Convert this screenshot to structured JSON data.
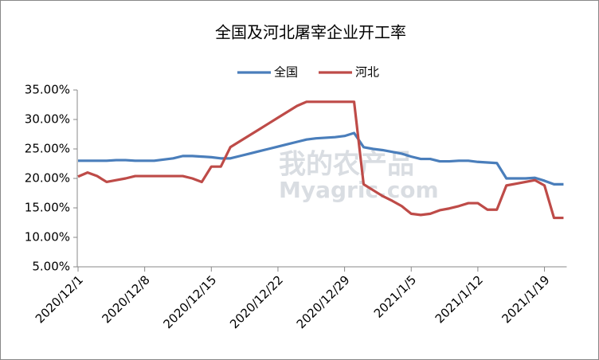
{
  "chart_data": {
    "type": "line",
    "title": "全国及河北屠宰企业开工率",
    "watermark": [
      "我的农产品",
      "Myagric.com"
    ],
    "categories": [
      "2020/12/1",
      null,
      null,
      null,
      null,
      null,
      null,
      "2020/12/8",
      null,
      null,
      null,
      null,
      null,
      null,
      "2020/12/15",
      null,
      null,
      null,
      null,
      null,
      null,
      "2020/12/22",
      null,
      null,
      null,
      null,
      null,
      null,
      "2020/12/29",
      null,
      null,
      null,
      null,
      null,
      null,
      "2021/1/5",
      null,
      null,
      null,
      null,
      null,
      null,
      "2021/1/12",
      null,
      null,
      null,
      null,
      null,
      null,
      "2021/1/19",
      null,
      null
    ],
    "series": [
      {
        "name": "全国",
        "color": "#4a7ebb",
        "values": [
          23.0,
          23.0,
          23.0,
          23.0,
          23.1,
          23.1,
          23.0,
          23.0,
          23.0,
          23.2,
          23.4,
          23.8,
          23.8,
          23.7,
          23.6,
          23.4,
          23.4,
          23.8,
          24.2,
          24.6,
          25.0,
          25.4,
          25.8,
          26.2,
          26.6,
          26.8,
          26.9,
          27.0,
          27.2,
          27.7,
          25.3,
          25.0,
          24.8,
          24.5,
          24.2,
          23.7,
          23.3,
          23.3,
          22.9,
          22.9,
          23.0,
          23.0,
          22.8,
          22.7,
          22.6,
          20.0,
          20.0,
          20.0,
          20.1,
          19.6,
          19.0,
          19.0
        ]
      },
      {
        "name": "河北",
        "color": "#be4b48",
        "values": [
          20.3,
          21.0,
          20.4,
          19.4,
          19.7,
          20.0,
          20.4,
          20.4,
          20.4,
          20.4,
          20.4,
          20.4,
          20.0,
          19.4,
          22.0,
          22.0,
          25.3,
          26.3,
          27.3,
          28.3,
          29.3,
          30.3,
          31.3,
          32.3,
          33.0,
          33.0,
          33.0,
          33.0,
          33.0,
          33.0,
          19.0,
          18.0,
          17.0,
          16.2,
          15.3,
          14.0,
          13.8,
          14.0,
          14.6,
          14.9,
          15.3,
          15.8,
          15.8,
          14.7,
          14.7,
          18.8,
          19.1,
          19.4,
          19.7,
          18.8,
          13.3,
          13.3
        ]
      }
    ],
    "ylim": [
      5,
      35
    ],
    "yticks": [
      {
        "value": 5,
        "label": "5.00%"
      },
      {
        "value": 10,
        "label": "10.00%"
      },
      {
        "value": 15,
        "label": "15.00%"
      },
      {
        "value": 20,
        "label": "20.00%"
      },
      {
        "value": 25,
        "label": "25.00%"
      },
      {
        "value": 30,
        "label": "30.00%"
      },
      {
        "value": 35,
        "label": "35.00%"
      }
    ],
    "grid": false,
    "legend": "top"
  }
}
